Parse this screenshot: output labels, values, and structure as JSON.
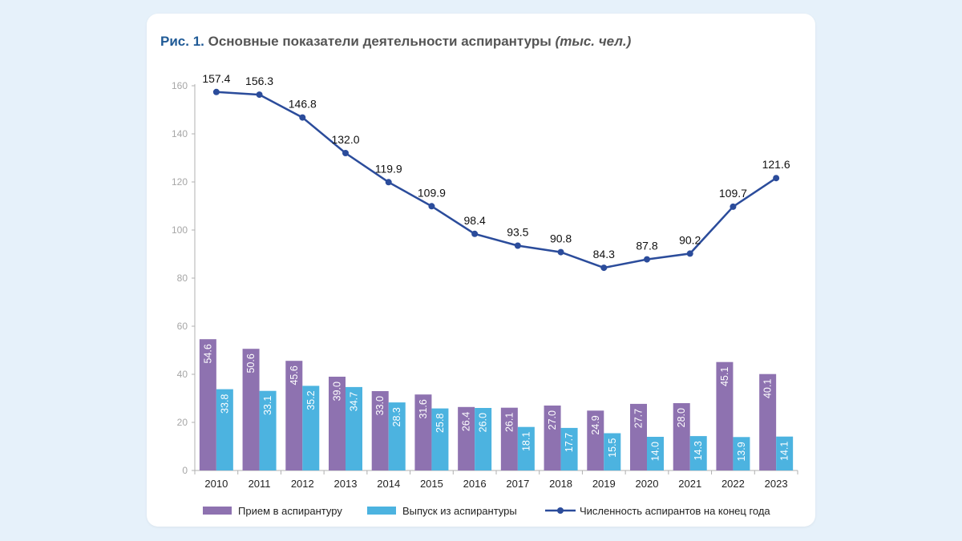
{
  "title": {
    "prefix": "Рис. 1.",
    "main": "Основные показатели деятельности аспирантуры",
    "units": "(тыс. чел.)"
  },
  "colors": {
    "admission": "#8e72b0",
    "graduation": "#4cb3e0",
    "enrollment": "#2b4c9b",
    "axis_text": "#a6a6a6",
    "year_text": "#222222"
  },
  "chart_data": {
    "type": "bar",
    "categories": [
      "2010",
      "2011",
      "2012",
      "2013",
      "2014",
      "2015",
      "2016",
      "2017",
      "2018",
      "2019",
      "2020",
      "2021",
      "2022",
      "2023"
    ],
    "series": [
      {
        "name": "Прием в аспирантуру",
        "type": "bar",
        "values": [
          54.6,
          50.6,
          45.6,
          39.0,
          33.0,
          31.6,
          26.4,
          26.1,
          27.0,
          24.9,
          27.7,
          28.0,
          45.1,
          40.1
        ],
        "labels": [
          "54.6",
          "50.6",
          "45.6",
          "39.0",
          "33.0",
          "31.6",
          "26.4",
          "26.1",
          "27.0",
          "24.9",
          "27.7",
          "28.0",
          "45.1",
          "40.1"
        ]
      },
      {
        "name": "Выпуск из аспирантуры",
        "type": "bar",
        "values": [
          33.8,
          33.1,
          35.2,
          34.7,
          28.3,
          25.8,
          26.0,
          18.1,
          17.7,
          15.5,
          14.0,
          14.3,
          13.9,
          14.1
        ],
        "labels": [
          "33.8",
          "33.1",
          "35.2",
          "34.7",
          "28.3",
          "25.8",
          "26.0",
          "18.1",
          "17.7",
          "15.5",
          "14.0",
          "14.3",
          "13.9",
          "14.1"
        ]
      },
      {
        "name": "Численность аспирантов на конец года",
        "type": "line",
        "values": [
          157.4,
          156.3,
          146.8,
          132.0,
          119.9,
          109.9,
          98.4,
          93.5,
          90.8,
          84.3,
          87.8,
          90.2,
          109.7,
          121.6
        ],
        "labels": [
          "157.4",
          "156.3",
          "146.8",
          "132.0",
          "119.9",
          "109.9",
          "98.4",
          "93.5",
          "90.8",
          "84.3",
          "87.8",
          "90.2",
          "109.7",
          "121.6"
        ]
      }
    ],
    "y_ticks": [
      "0",
      "20",
      "40",
      "60",
      "80",
      "100",
      "120",
      "140",
      "160"
    ],
    "ylim": [
      0,
      160
    ],
    "grid": false,
    "legend_position": "bottom"
  }
}
